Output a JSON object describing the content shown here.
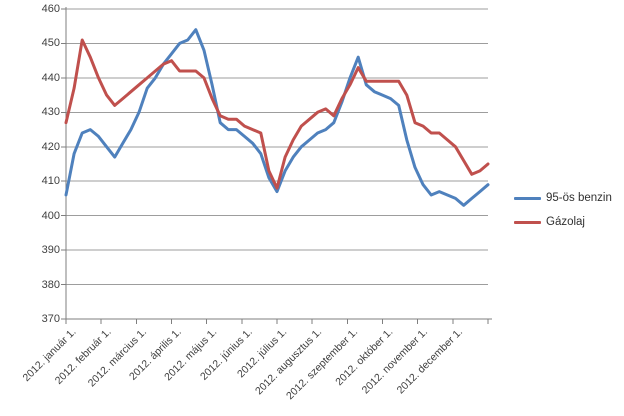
{
  "chart_data": {
    "type": "line",
    "title": "",
    "ylim": [
      370,
      460
    ],
    "grid": true,
    "legend_position": "right",
    "y_ticks": [
      460,
      450,
      440,
      430,
      420,
      410,
      400,
      390,
      380,
      370
    ],
    "x_tick_labels": [
      "2012. január 1.",
      "2012. február 1.",
      "2012. március 1.",
      "2012. április 1.",
      "2012. május 1.",
      "2012. június 1.",
      "2012. július 1.",
      "2012. augusztus 1.",
      "2012. szeptember 1.",
      "2012. október 1.",
      "2012. november 1.",
      "2012. december 1."
    ],
    "colors": {
      "gridline": "#9d9d9d",
      "axis": "#7f7f7f",
      "label": "#3f3f3f"
    },
    "series": [
      {
        "name": "95-ös benzin",
        "color": "#4F81BD",
        "values": [
          406,
          418,
          424,
          425,
          423,
          420,
          417,
          421,
          425,
          430,
          437,
          440,
          444,
          447,
          450,
          451,
          454,
          448,
          438,
          427,
          425,
          425,
          423,
          421,
          418,
          411,
          407,
          413,
          417,
          420,
          422,
          424,
          425,
          427,
          433,
          440,
          446,
          438,
          436,
          435,
          434,
          432,
          422,
          414,
          409,
          406,
          407,
          406,
          405,
          403,
          405,
          407,
          409
        ]
      },
      {
        "name": "Gázolaj",
        "color": "#C0504D",
        "values": [
          427,
          437,
          451,
          446,
          440,
          435,
          432,
          434,
          436,
          438,
          440,
          442,
          444,
          445,
          442,
          442,
          442,
          440,
          434,
          429,
          428,
          428,
          426,
          425,
          424,
          413,
          408,
          417,
          422,
          426,
          428,
          430,
          431,
          429,
          434,
          438,
          443,
          439,
          439,
          439,
          439,
          439,
          435,
          427,
          426,
          424,
          424,
          422,
          420,
          416,
          412,
          413,
          415
        ]
      }
    ]
  }
}
